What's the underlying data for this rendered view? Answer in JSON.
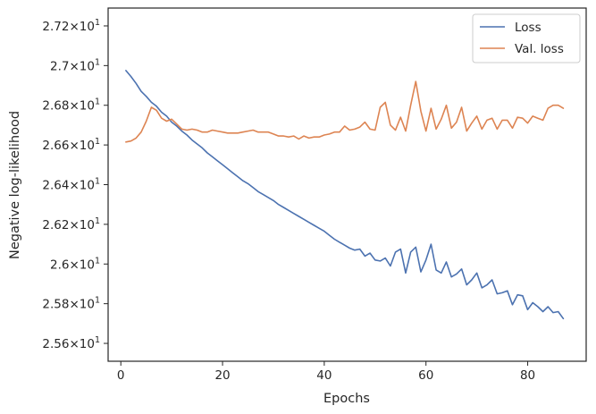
{
  "chart_data": {
    "type": "line",
    "xlabel": "Epochs",
    "ylabel": "Negative log-likelihood",
    "xlim": [
      -2.5,
      91.5
    ],
    "ylim": [
      25.51,
      27.29
    ],
    "xticks": [
      0,
      20,
      40,
      60,
      80
    ],
    "yticks": [
      25.6,
      25.8,
      26.0,
      26.2,
      26.4,
      26.6,
      26.8,
      27.0,
      27.2
    ],
    "ytick_format": "{m}×10^1 (mantissa shown, exponent 1 as superscript)",
    "grid": false,
    "legend_position": "top-right",
    "x": [
      1,
      2,
      3,
      4,
      5,
      6,
      7,
      8,
      9,
      10,
      11,
      12,
      13,
      14,
      15,
      16,
      17,
      18,
      19,
      20,
      21,
      22,
      23,
      24,
      25,
      26,
      27,
      28,
      29,
      30,
      31,
      32,
      33,
      34,
      35,
      36,
      37,
      38,
      39,
      40,
      41,
      42,
      43,
      44,
      45,
      46,
      47,
      48,
      49,
      50,
      51,
      52,
      53,
      54,
      55,
      56,
      57,
      58,
      59,
      60,
      61,
      62,
      63,
      64,
      65,
      66,
      67,
      68,
      69,
      70,
      71,
      72,
      73,
      74,
      75,
      76,
      77,
      78,
      79,
      80,
      81,
      82,
      83,
      84,
      85,
      86,
      87
    ],
    "series": [
      {
        "name": "Loss",
        "color": "#4c72b0",
        "values": [
          26.975,
          26.945,
          26.91,
          26.87,
          26.845,
          26.815,
          26.795,
          26.765,
          26.745,
          26.715,
          26.695,
          26.67,
          26.65,
          26.625,
          26.605,
          26.585,
          26.56,
          26.54,
          26.52,
          26.5,
          26.48,
          26.46,
          26.44,
          26.42,
          26.405,
          26.385,
          26.365,
          26.35,
          26.335,
          26.32,
          26.3,
          26.285,
          26.27,
          26.255,
          26.24,
          26.225,
          26.21,
          26.195,
          26.18,
          26.165,
          26.145,
          26.125,
          26.11,
          26.095,
          26.08,
          26.07,
          26.075,
          26.04,
          26.055,
          26.02,
          26.015,
          26.03,
          25.99,
          26.06,
          26.075,
          25.955,
          26.06,
          26.085,
          25.96,
          26.02,
          26.1,
          25.97,
          25.955,
          26.01,
          25.935,
          25.95,
          25.975,
          25.895,
          25.92,
          25.955,
          25.88,
          25.895,
          25.92,
          25.85,
          25.855,
          25.865,
          25.795,
          25.845,
          25.84,
          25.77,
          25.805,
          25.785,
          25.76,
          25.785,
          25.755,
          25.76,
          25.725
        ]
      },
      {
        "name": "Val. loss",
        "color": "#dd8452",
        "values": [
          26.615,
          26.62,
          26.635,
          26.665,
          26.72,
          26.79,
          26.775,
          26.735,
          26.72,
          26.73,
          26.705,
          26.68,
          26.675,
          26.68,
          26.675,
          26.665,
          26.665,
          26.675,
          26.67,
          26.665,
          26.66,
          26.66,
          26.66,
          26.665,
          26.67,
          26.675,
          26.665,
          26.665,
          26.665,
          26.655,
          26.645,
          26.645,
          26.64,
          26.645,
          26.63,
          26.645,
          26.635,
          26.64,
          26.64,
          26.65,
          26.655,
          26.665,
          26.665,
          26.695,
          26.675,
          26.68,
          26.69,
          26.715,
          26.68,
          26.675,
          26.79,
          26.815,
          26.7,
          26.675,
          26.74,
          26.67,
          26.8,
          26.92,
          26.77,
          26.67,
          26.785,
          26.68,
          26.73,
          26.8,
          26.685,
          26.715,
          26.79,
          26.67,
          26.71,
          26.745,
          26.68,
          26.725,
          26.735,
          26.68,
          26.725,
          26.725,
          26.685,
          26.74,
          26.735,
          26.71,
          26.745,
          26.735,
          26.725,
          26.785,
          26.8,
          26.8,
          26.785
        ]
      }
    ]
  }
}
